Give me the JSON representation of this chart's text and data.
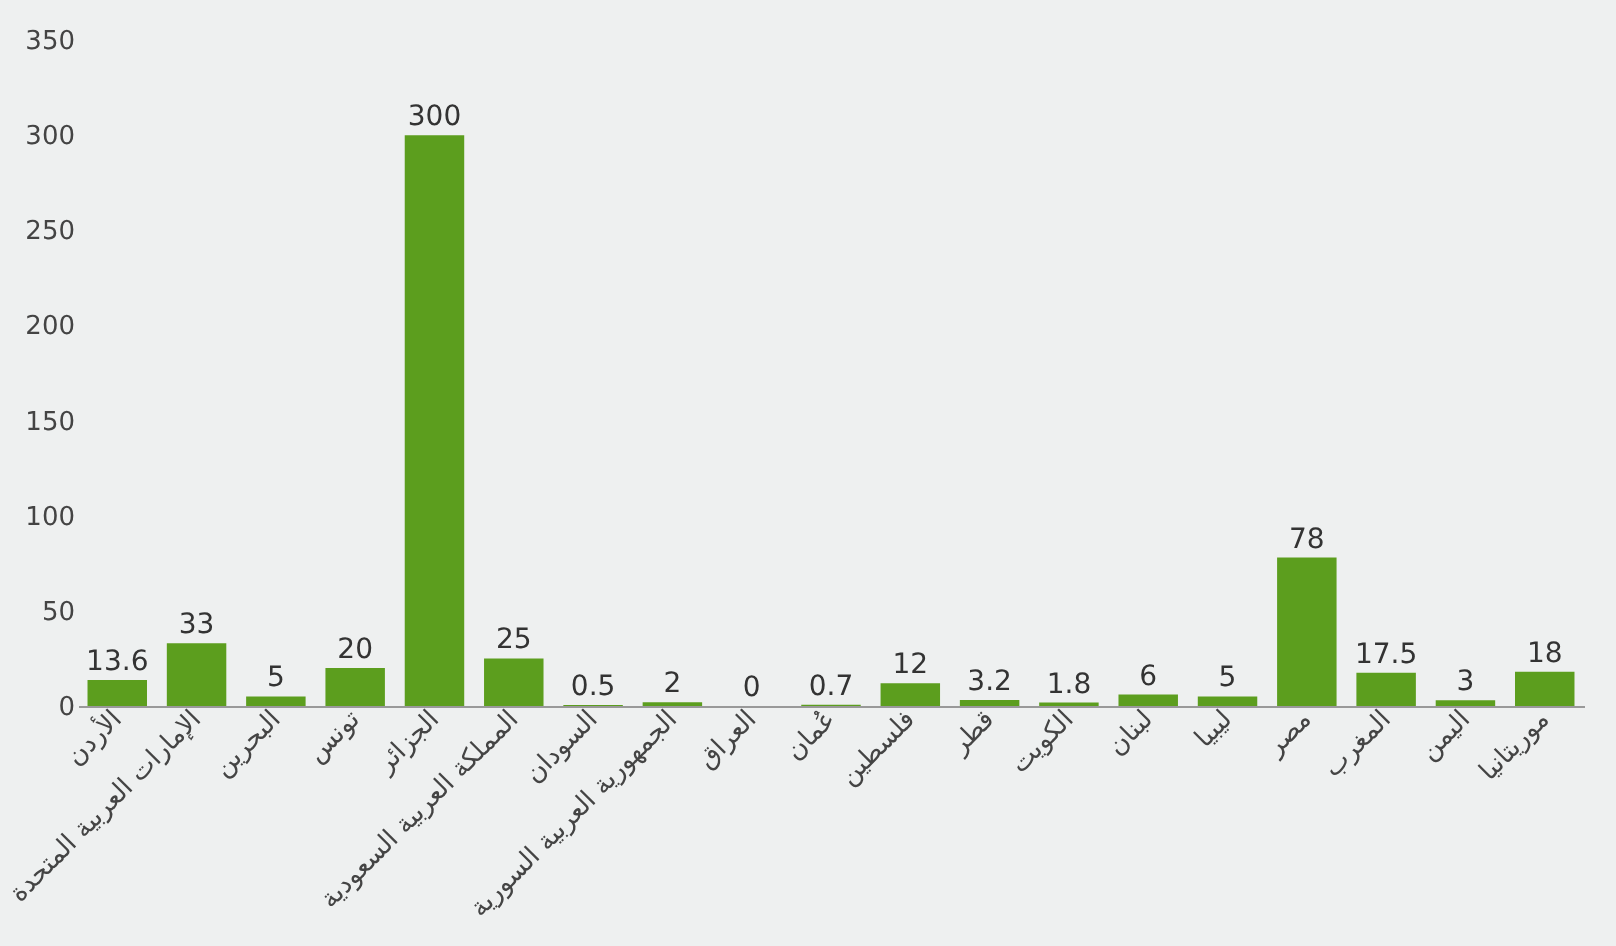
{
  "chart_data": {
    "type": "bar",
    "categories": [
      "الأردن",
      "الإمارات العربية المتحدة",
      "البحرين",
      "تونس",
      "الجزائر",
      "المملكة العربية السعودية",
      "السودان",
      "الجمهورية العربية السورية",
      "العراق",
      "عُمان",
      "فلسطين",
      "قطر",
      "الكويت",
      "لبنان",
      "ليبيا",
      "مصر",
      "المغرب",
      "اليمن",
      "موريتانيا"
    ],
    "values": [
      13.6,
      33,
      5,
      20,
      300,
      25,
      0.5,
      2,
      0,
      0.7,
      12,
      3.2,
      1.8,
      6,
      5,
      78,
      17.5,
      3,
      18
    ],
    "color": "#5c9e1e",
    "ylim": [
      0,
      350
    ],
    "yticks": [
      0,
      50,
      100,
      150,
      200,
      250,
      300,
      350
    ],
    "data_labels": true,
    "grid": false
  }
}
